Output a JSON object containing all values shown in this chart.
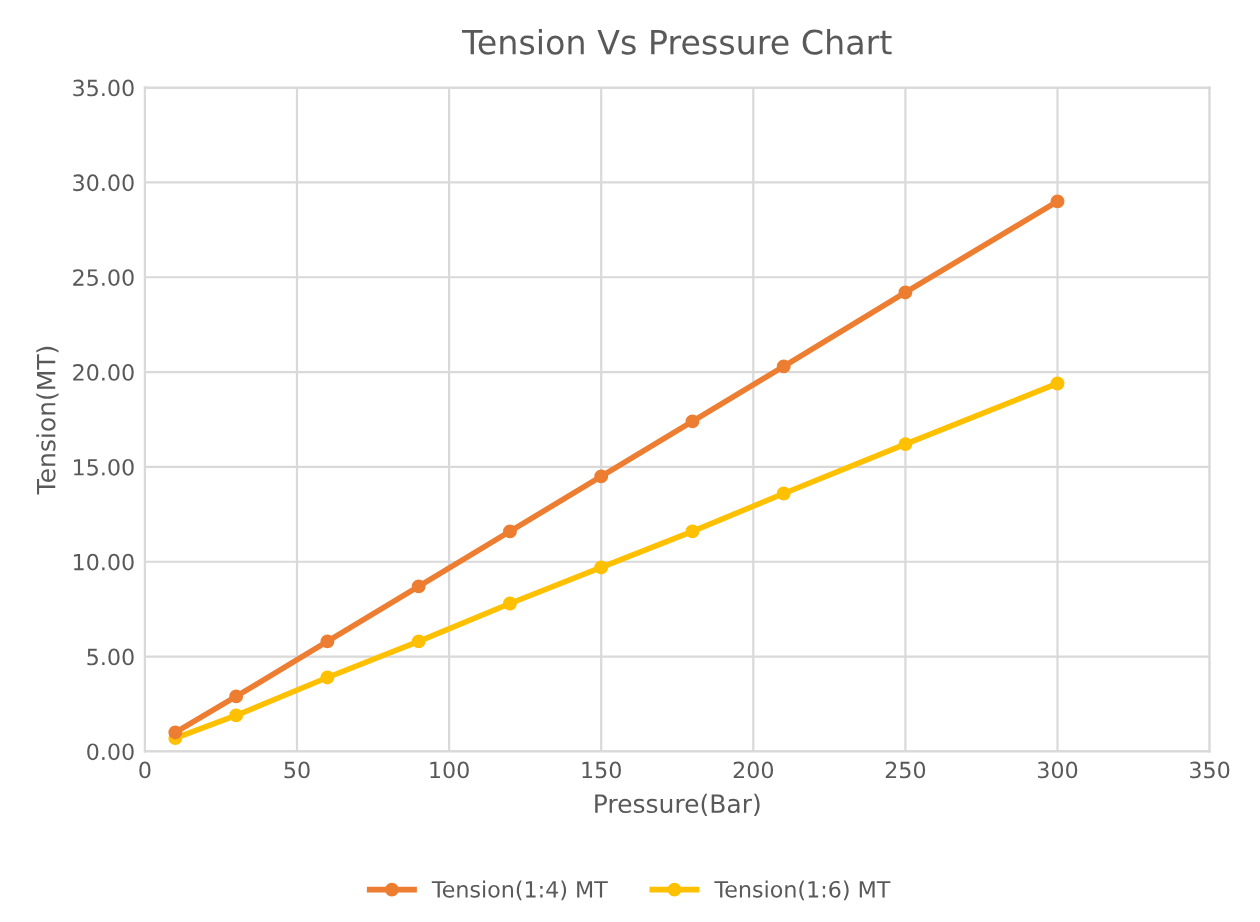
{
  "chart_data": {
    "type": "line",
    "title": "Tension Vs Pressure Chart",
    "xlabel": "Pressure(Bar)",
    "ylabel": "Tension(MT)",
    "x": [
      10,
      30,
      60,
      90,
      120,
      150,
      180,
      210,
      250,
      300
    ],
    "series": [
      {
        "name": "Tension(1:4) MT",
        "color": "#ed7d31",
        "values": [
          1.0,
          2.9,
          5.8,
          8.7,
          11.6,
          14.5,
          17.4,
          20.3,
          24.2,
          29.0
        ]
      },
      {
        "name": "Tension(1:6) MT",
        "color": "#ffc000",
        "values": [
          0.7,
          1.9,
          3.9,
          5.8,
          7.8,
          9.7,
          11.6,
          13.6,
          16.2,
          19.4
        ]
      }
    ],
    "xlim": [
      0,
      350
    ],
    "xticks": [
      0,
      50,
      100,
      150,
      200,
      250,
      300,
      350
    ],
    "ylim": [
      0,
      35
    ],
    "yticks": [
      {
        "value": 0,
        "label": "0.00"
      },
      {
        "value": 5,
        "label": "5.00"
      },
      {
        "value": 10,
        "label": "10.00"
      },
      {
        "value": 15,
        "label": "15.00"
      },
      {
        "value": 20,
        "label": "20.00"
      },
      {
        "value": 25,
        "label": "25.00"
      },
      {
        "value": 30,
        "label": "30.00"
      },
      {
        "value": 35,
        "label": "35.00"
      }
    ],
    "grid": true,
    "legend": "bottom",
    "marker": "circle",
    "line_style": "solid"
  }
}
